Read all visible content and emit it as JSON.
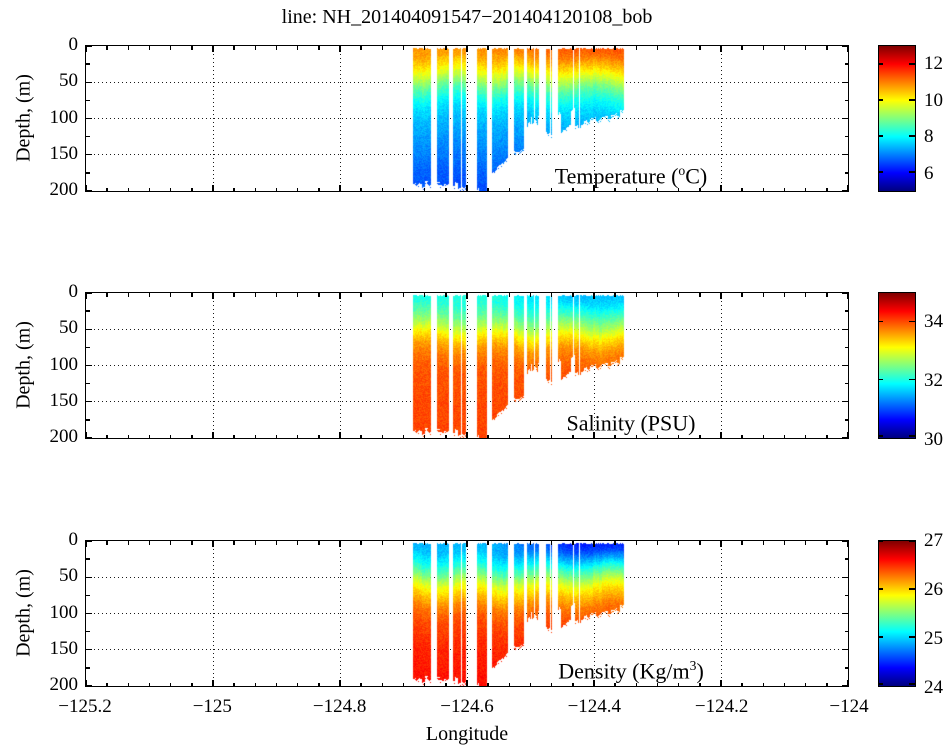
{
  "chart_data": {
    "type": "heatmap",
    "title": "line: NH_201404091547−201404120108_bob",
    "xlabel": "Longitude",
    "ylabel": "Depth, (m)",
    "colormap": "jet",
    "grid": "dotted",
    "x_axis": {
      "min": -125.2,
      "max": -124.0,
      "major_ticks": [
        -125.2,
        -125.0,
        -124.8,
        -124.6,
        -124.4,
        -124.2,
        -124.0
      ],
      "tick_labels": [
        "−125.2",
        "−125",
        "−124.8",
        "−124.6",
        "−124.4",
        "−124.2",
        "−124"
      ],
      "minor_divisions": 6
    },
    "y_axis": {
      "min": 0,
      "max": 200,
      "major_ticks": [
        0,
        50,
        100,
        150,
        200
      ],
      "tick_labels": [
        "0",
        "50",
        "100",
        "150",
        "200"
      ],
      "minor_divisions": 2
    },
    "panels": [
      {
        "name": "temperature",
        "label_pre": "Temperature (",
        "label_sup": "o",
        "label_post": "C)",
        "caxis": [
          5,
          13
        ],
        "colorbar_ticks": [
          12,
          10,
          8,
          6
        ],
        "profile": [
          [
            0,
            10.9
          ],
          [
            15,
            10.7
          ],
          [
            30,
            10.2
          ],
          [
            45,
            9.5
          ],
          [
            60,
            8.7
          ],
          [
            75,
            8.1
          ],
          [
            90,
            7.7
          ],
          [
            110,
            7.4
          ],
          [
            140,
            7.1
          ],
          [
            170,
            6.8
          ],
          [
            200,
            6.6
          ]
        ],
        "east_surface_delta": 0.5
      },
      {
        "name": "salinity",
        "label_pre": "Salinity (PSU)",
        "label_sup": "",
        "label_post": "",
        "caxis": [
          30,
          35
        ],
        "colorbar_ticks": [
          34,
          32,
          30
        ],
        "profile": [
          [
            0,
            32.0
          ],
          [
            15,
            32.05
          ],
          [
            30,
            32.3
          ],
          [
            45,
            32.7
          ],
          [
            60,
            33.2
          ],
          [
            75,
            33.6
          ],
          [
            90,
            33.8
          ],
          [
            110,
            33.95
          ],
          [
            140,
            34.0
          ],
          [
            200,
            34.05
          ]
        ],
        "east_surface_delta": -0.45
      },
      {
        "name": "density",
        "label_pre": "Density (Kg/m",
        "label_sup": "3",
        "label_post": ")",
        "caxis": [
          24,
          27
        ],
        "colorbar_ticks": [
          27,
          26,
          25,
          24
        ],
        "profile": [
          [
            0,
            24.9
          ],
          [
            15,
            24.95
          ],
          [
            30,
            25.15
          ],
          [
            45,
            25.45
          ],
          [
            60,
            25.8
          ],
          [
            75,
            26.05
          ],
          [
            90,
            26.25
          ],
          [
            110,
            26.4
          ],
          [
            140,
            26.5
          ],
          [
            200,
            26.6
          ]
        ],
        "east_surface_delta": -0.45
      }
    ],
    "section": {
      "lon_start": -124.685,
      "lon_end": -124.352,
      "gaps": [
        [
          -124.656,
          -124.647
        ],
        [
          -124.629,
          -124.622
        ],
        [
          -124.601,
          -124.585
        ],
        [
          -124.569,
          -124.561
        ],
        [
          -124.535,
          -124.526
        ],
        [
          -124.511,
          -124.505
        ],
        [
          -124.486,
          -124.476
        ],
        [
          -124.466,
          -124.457
        ]
      ],
      "bathymetry": [
        [
          -124.685,
          190
        ],
        [
          -124.62,
          191
        ],
        [
          -124.6,
          193
        ],
        [
          -124.568,
          195
        ],
        [
          -124.558,
          172
        ],
        [
          -124.545,
          158
        ],
        [
          -124.535,
          150
        ],
        [
          -124.524,
          145
        ],
        [
          -124.51,
          140
        ],
        [
          -124.504,
          133
        ],
        [
          -124.486,
          128
        ],
        [
          -124.474,
          122
        ],
        [
          -124.455,
          118
        ],
        [
          -124.44,
          112
        ],
        [
          -124.425,
          108
        ],
        [
          -124.415,
          104
        ],
        [
          -124.4,
          101
        ],
        [
          -124.385,
          98
        ],
        [
          -124.37,
          95
        ],
        [
          -124.352,
          90
        ]
      ]
    },
    "colors": {
      "axis": "#000000",
      "background": "#ffffff",
      "jet_stops": [
        "#00007f",
        "#0000ff",
        "#00ffff",
        "#ffff00",
        "#ff0000",
        "#7f0000"
      ]
    }
  }
}
